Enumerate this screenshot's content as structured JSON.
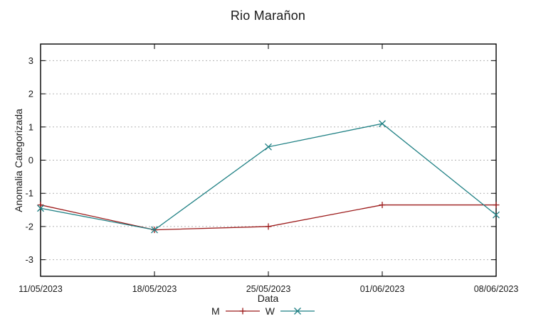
{
  "chart_data": {
    "type": "line",
    "title": "Rio Marañon",
    "xlabel": "Data",
    "ylabel": "Anomalia Categorizada",
    "categories": [
      "11/05/2023",
      "18/05/2023",
      "25/05/2023",
      "01/06/2023",
      "08/06/2023"
    ],
    "yticks": [
      -3,
      -2,
      -1,
      0,
      1,
      2,
      3
    ],
    "ylim": [
      -3.5,
      3.5
    ],
    "grid": "horizontal-dotted",
    "legend_position": "bottom-center",
    "series": [
      {
        "name": "M",
        "color": "#9c1a1a",
        "marker": "plus",
        "values": [
          -1.35,
          -2.1,
          -2.0,
          -1.35,
          -1.35
        ]
      },
      {
        "name": "W",
        "color": "#1f8084",
        "marker": "cross",
        "values": [
          -1.45,
          -2.1,
          0.4,
          1.1,
          -1.65
        ]
      }
    ],
    "axis_color": "#000000",
    "tick_label_color": "#1a1a1a",
    "grid_color": "#b3b3b3"
  }
}
